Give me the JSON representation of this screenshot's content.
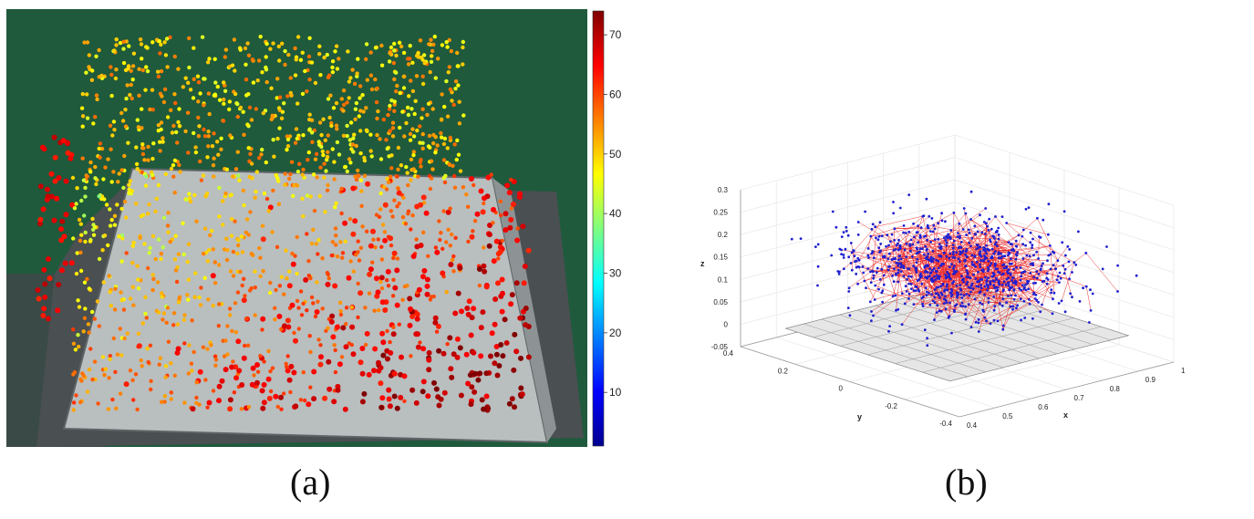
{
  "captions": {
    "a": "(a)",
    "b": "(b)"
  },
  "chart_data": [
    {
      "type": "scatter",
      "panel": "(a)",
      "description_visible": "depth-colored feature points overlaid on camera image",
      "colorbar": {
        "min": 1,
        "max": 74,
        "ticks": [
          10,
          20,
          30,
          40,
          50,
          60,
          70
        ],
        "colormap": "jet"
      },
      "colors": {
        "background_green": "#1f5a3c",
        "plate": "#b7bcbd",
        "plate_edge": "#5d6466",
        "table_dark": "#4a4f52"
      }
    },
    {
      "type": "scatter",
      "panel": "(b)",
      "projection": "3d",
      "xlabel": "x",
      "ylabel": "y",
      "zlabel": "z",
      "x_ticks": [
        0.4,
        0.5,
        0.6,
        0.7,
        0.8,
        0.9,
        1
      ],
      "y_ticks": [
        -0.4,
        -0.2,
        0,
        0.2,
        0.4
      ],
      "z_ticks": [
        -0.05,
        0,
        0.05,
        0.1,
        0.15,
        0.2,
        0.25,
        0.3
      ],
      "xlim": [
        0.4,
        1
      ],
      "ylim": [
        -0.4,
        0.4
      ],
      "zlim": [
        -0.05,
        0.3
      ],
      "grid": true,
      "point_color": "#1f1fd0",
      "edge_color": "#e82020",
      "ground_plane": {
        "z": 0,
        "x_range": [
          0.45,
          0.95
        ],
        "y_range": [
          -0.3,
          0.3
        ],
        "color": "#e6e6e6"
      }
    }
  ]
}
